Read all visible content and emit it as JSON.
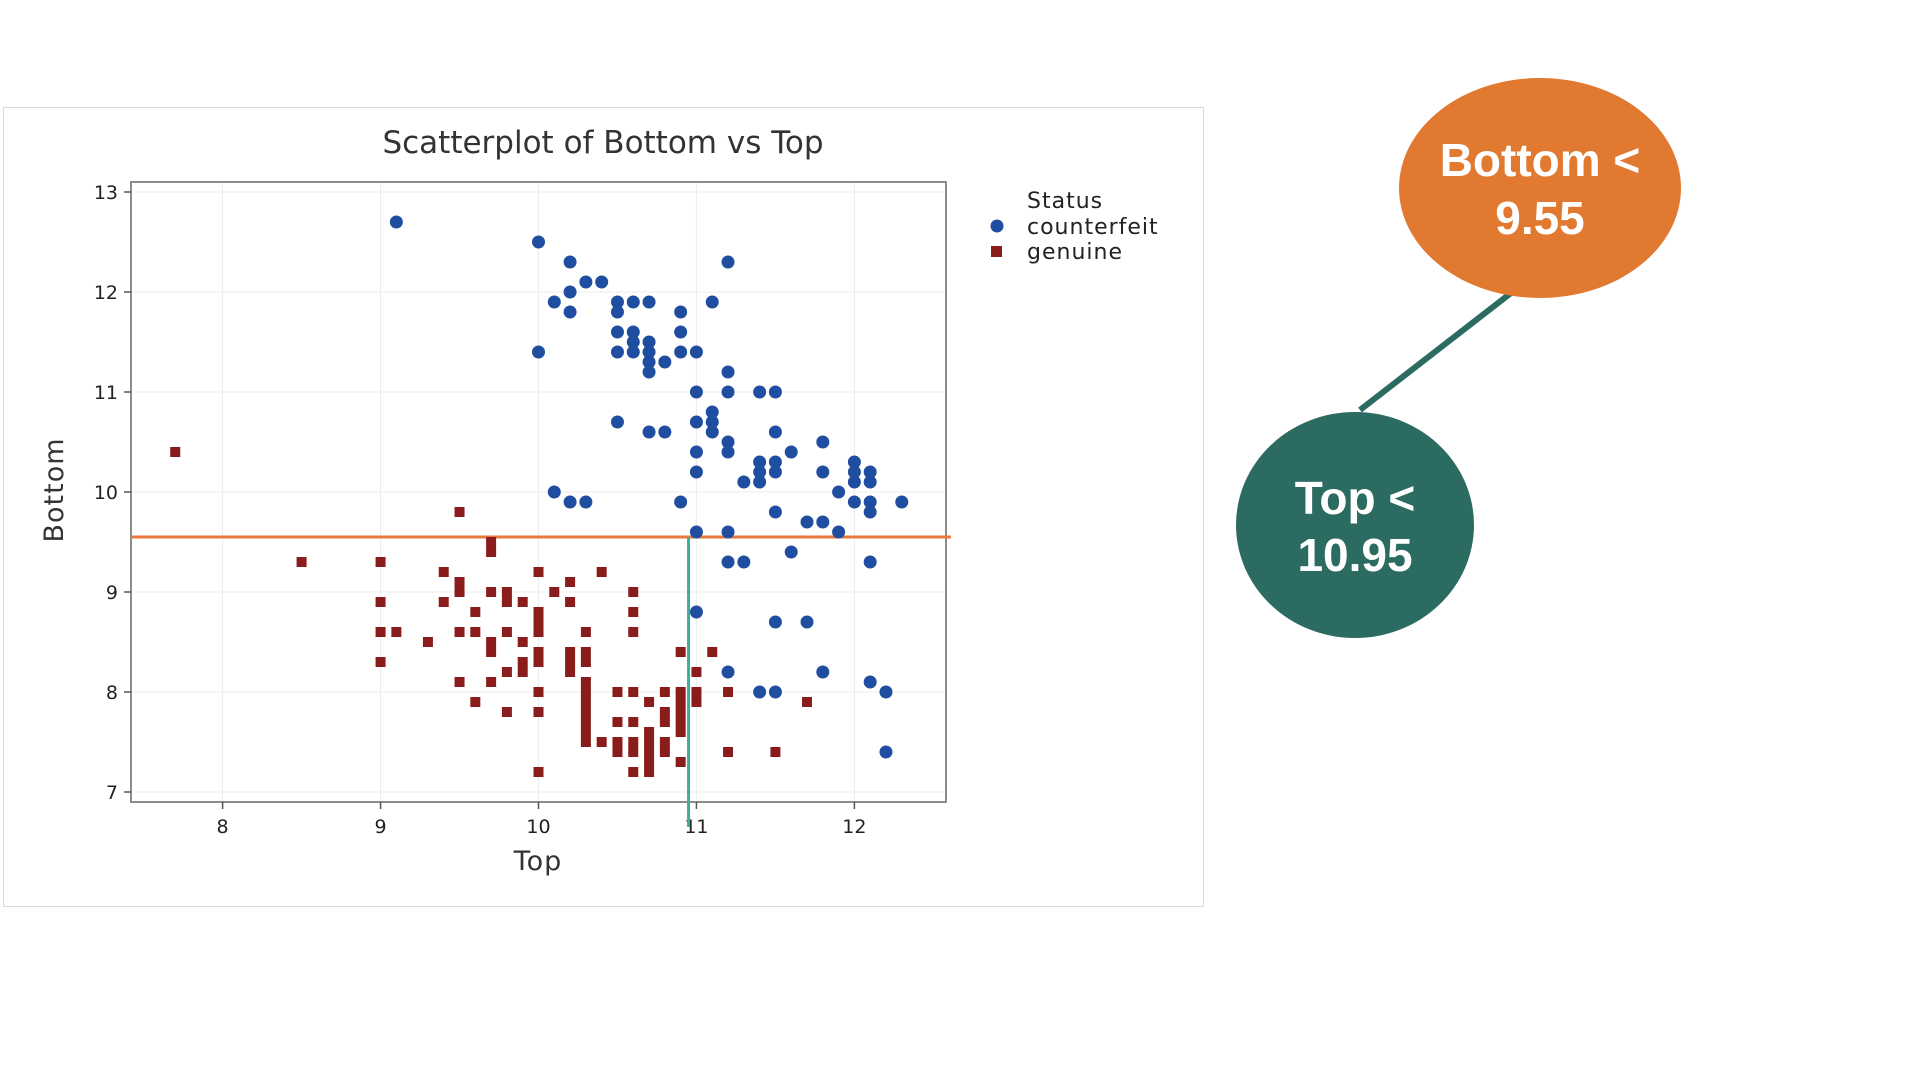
{
  "chart_data": {
    "type": "scatter",
    "title": "Scatterplot of Bottom vs Top",
    "xlabel": "Top",
    "ylabel": "Bottom",
    "xlim": [
      7.42,
      12.58
    ],
    "ylim": [
      6.9,
      13.1
    ],
    "xticks": [
      8,
      9,
      10,
      11,
      12
    ],
    "yticks": [
      7,
      8,
      9,
      10,
      11,
      12,
      13
    ],
    "grid": true,
    "legend": {
      "title": "Status",
      "placement": "right"
    },
    "reference_lines": [
      {
        "orientation": "horizontal",
        "y": 9.55,
        "color": "#e8793a"
      },
      {
        "orientation": "vertical",
        "x": 10.95,
        "y_from": 6.65,
        "y_to": 9.55,
        "color": "#3fae96"
      }
    ],
    "series": [
      {
        "name": "counterfeit",
        "marker": "circle",
        "color": "#1f4ea1",
        "points": [
          [
            9.1,
            12.7
          ],
          [
            10.0,
            12.5
          ],
          [
            10.2,
            12.3
          ],
          [
            11.2,
            12.3
          ],
          [
            10.3,
            12.1
          ],
          [
            10.4,
            12.1
          ],
          [
            10.2,
            12.0
          ],
          [
            10.1,
            11.9
          ],
          [
            10.5,
            11.9
          ],
          [
            10.6,
            11.9
          ],
          [
            10.7,
            11.9
          ],
          [
            11.1,
            11.9
          ],
          [
            10.2,
            11.8
          ],
          [
            10.5,
            11.8
          ],
          [
            10.9,
            11.8
          ],
          [
            10.5,
            11.6
          ],
          [
            10.6,
            11.6
          ],
          [
            10.9,
            11.6
          ],
          [
            10.6,
            11.5
          ],
          [
            10.7,
            11.5
          ],
          [
            10.0,
            11.4
          ],
          [
            10.5,
            11.4
          ],
          [
            10.6,
            11.4
          ],
          [
            10.7,
            11.4
          ],
          [
            10.9,
            11.4
          ],
          [
            11.0,
            11.4
          ],
          [
            10.7,
            11.3
          ],
          [
            10.8,
            11.3
          ],
          [
            10.7,
            11.2
          ],
          [
            11.2,
            11.2
          ],
          [
            11.0,
            11.0
          ],
          [
            11.2,
            11.0
          ],
          [
            11.4,
            11.0
          ],
          [
            11.5,
            11.0
          ],
          [
            11.1,
            10.8
          ],
          [
            11.0,
            10.7
          ],
          [
            11.1,
            10.7
          ],
          [
            10.5,
            10.7
          ],
          [
            10.7,
            10.6
          ],
          [
            10.8,
            10.6
          ],
          [
            11.1,
            10.6
          ],
          [
            11.5,
            10.6
          ],
          [
            11.2,
            10.5
          ],
          [
            11.8,
            10.5
          ],
          [
            11.0,
            10.4
          ],
          [
            11.2,
            10.4
          ],
          [
            11.6,
            10.4
          ],
          [
            11.4,
            10.3
          ],
          [
            11.5,
            10.3
          ],
          [
            12.0,
            10.3
          ],
          [
            11.0,
            10.2
          ],
          [
            11.4,
            10.2
          ],
          [
            11.5,
            10.2
          ],
          [
            11.8,
            10.2
          ],
          [
            12.0,
            10.2
          ],
          [
            12.1,
            10.2
          ],
          [
            11.3,
            10.1
          ],
          [
            11.4,
            10.1
          ],
          [
            12.0,
            10.1
          ],
          [
            12.1,
            10.1
          ],
          [
            10.1,
            10.0
          ],
          [
            11.9,
            10.0
          ],
          [
            10.2,
            9.9
          ],
          [
            10.3,
            9.9
          ],
          [
            10.9,
            9.9
          ],
          [
            12.0,
            9.9
          ],
          [
            12.1,
            9.9
          ],
          [
            12.3,
            9.9
          ],
          [
            11.5,
            9.8
          ],
          [
            12.1,
            9.8
          ],
          [
            11.7,
            9.7
          ],
          [
            11.8,
            9.7
          ],
          [
            11.0,
            9.6
          ],
          [
            11.2,
            9.6
          ],
          [
            11.9,
            9.6
          ],
          [
            11.6,
            9.4
          ],
          [
            11.2,
            9.3
          ],
          [
            11.3,
            9.3
          ],
          [
            12.1,
            9.3
          ],
          [
            11.0,
            8.8
          ],
          [
            11.5,
            8.7
          ],
          [
            11.7,
            8.7
          ],
          [
            11.2,
            8.2
          ],
          [
            11.8,
            8.2
          ],
          [
            12.1,
            8.1
          ],
          [
            11.4,
            8.0
          ],
          [
            11.5,
            8.0
          ],
          [
            12.2,
            8.0
          ],
          [
            12.2,
            7.4
          ]
        ]
      },
      {
        "name": "genuine",
        "marker": "square",
        "color": "#8b1c1c",
        "points": [
          [
            7.7,
            10.4
          ],
          [
            9.5,
            9.8
          ],
          [
            9.7,
            9.5
          ],
          [
            9.7,
            9.4
          ],
          [
            8.5,
            9.3
          ],
          [
            9.0,
            9.3
          ],
          [
            9.4,
            9.2
          ],
          [
            10.0,
            9.2
          ],
          [
            10.4,
            9.2
          ],
          [
            9.5,
            9.1
          ],
          [
            10.2,
            9.1
          ],
          [
            9.5,
            9.0
          ],
          [
            9.7,
            9.0
          ],
          [
            9.8,
            9.0
          ],
          [
            10.1,
            9.0
          ],
          [
            10.6,
            9.0
          ],
          [
            9.0,
            8.9
          ],
          [
            9.4,
            8.9
          ],
          [
            9.8,
            8.9
          ],
          [
            9.9,
            8.9
          ],
          [
            10.2,
            8.9
          ],
          [
            9.6,
            8.8
          ],
          [
            10.0,
            8.8
          ],
          [
            10.6,
            8.8
          ],
          [
            10.0,
            8.7
          ],
          [
            9.0,
            8.6
          ],
          [
            9.1,
            8.6
          ],
          [
            9.5,
            8.6
          ],
          [
            9.6,
            8.6
          ],
          [
            9.8,
            8.6
          ],
          [
            10.0,
            8.6
          ],
          [
            10.3,
            8.6
          ],
          [
            10.6,
            8.6
          ],
          [
            9.3,
            8.5
          ],
          [
            9.7,
            8.5
          ],
          [
            9.9,
            8.5
          ],
          [
            9.7,
            8.4
          ],
          [
            10.0,
            8.4
          ],
          [
            10.2,
            8.4
          ],
          [
            10.3,
            8.4
          ],
          [
            10.9,
            8.4
          ],
          [
            11.1,
            8.4
          ],
          [
            9.0,
            8.3
          ],
          [
            9.9,
            8.3
          ],
          [
            10.0,
            8.3
          ],
          [
            10.2,
            8.3
          ],
          [
            10.3,
            8.3
          ],
          [
            9.8,
            8.2
          ],
          [
            9.9,
            8.2
          ],
          [
            10.2,
            8.2
          ],
          [
            11.0,
            8.2
          ],
          [
            9.5,
            8.1
          ],
          [
            9.7,
            8.1
          ],
          [
            10.3,
            8.1
          ],
          [
            10.0,
            8.0
          ],
          [
            10.3,
            8.0
          ],
          [
            10.5,
            8.0
          ],
          [
            10.6,
            8.0
          ],
          [
            10.8,
            8.0
          ],
          [
            10.9,
            8.0
          ],
          [
            11.0,
            8.0
          ],
          [
            11.2,
            8.0
          ],
          [
            9.6,
            7.9
          ],
          [
            10.3,
            7.9
          ],
          [
            10.7,
            7.9
          ],
          [
            10.9,
            7.9
          ],
          [
            11.0,
            7.9
          ],
          [
            11.7,
            7.9
          ],
          [
            9.8,
            7.8
          ],
          [
            10.0,
            7.8
          ],
          [
            10.3,
            7.8
          ],
          [
            10.8,
            7.8
          ],
          [
            10.9,
            7.8
          ],
          [
            10.3,
            7.7
          ],
          [
            10.5,
            7.7
          ],
          [
            10.6,
            7.7
          ],
          [
            10.8,
            7.7
          ],
          [
            10.9,
            7.7
          ],
          [
            10.3,
            7.6
          ],
          [
            10.7,
            7.6
          ],
          [
            10.9,
            7.6
          ],
          [
            10.3,
            7.5
          ],
          [
            10.4,
            7.5
          ],
          [
            10.5,
            7.5
          ],
          [
            10.6,
            7.5
          ],
          [
            10.7,
            7.5
          ],
          [
            10.8,
            7.5
          ],
          [
            10.5,
            7.4
          ],
          [
            10.6,
            7.4
          ],
          [
            10.7,
            7.4
          ],
          [
            10.8,
            7.4
          ],
          [
            11.2,
            7.4
          ],
          [
            11.5,
            7.4
          ],
          [
            10.7,
            7.3
          ],
          [
            10.9,
            7.3
          ],
          [
            10.0,
            7.2
          ],
          [
            10.6,
            7.2
          ],
          [
            10.7,
            7.2
          ]
        ]
      }
    ]
  },
  "tree": {
    "root": {
      "label_lines": [
        "Bottom <",
        "9.55"
      ],
      "color": "#e17a30"
    },
    "child": {
      "label_lines": [
        "Top <",
        "10.95"
      ],
      "color": "#2c6b62"
    },
    "edge_color": "#2c6b62"
  }
}
